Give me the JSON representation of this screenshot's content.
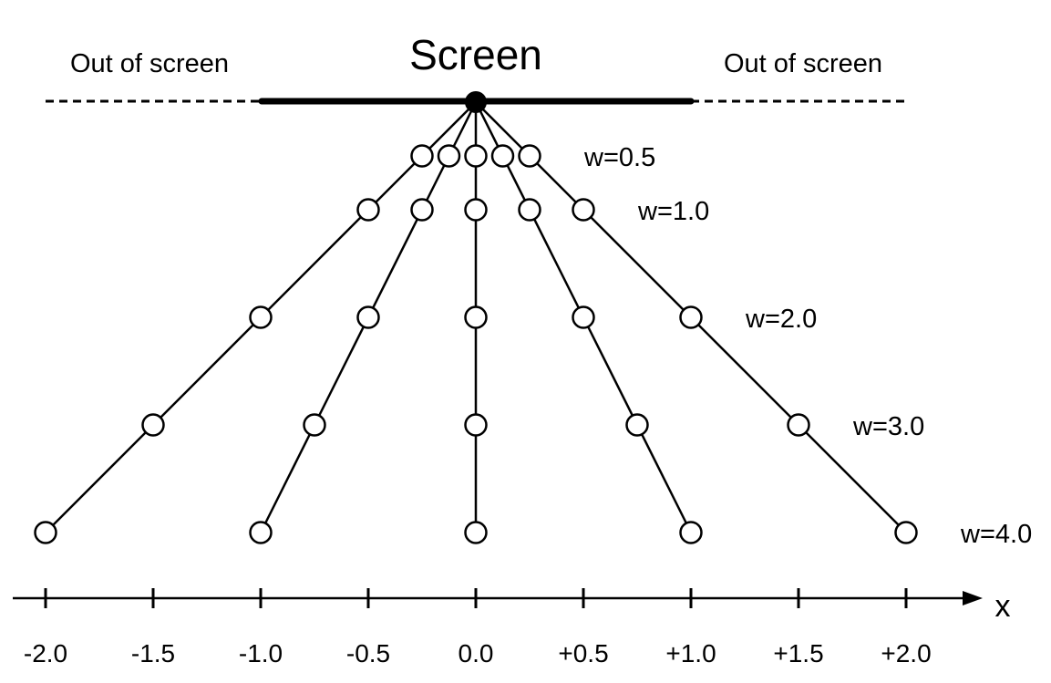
{
  "screen_label": "Screen",
  "out_of_screen_left": "Out of screen",
  "out_of_screen_right": "Out of screen",
  "axis_name": "x",
  "x_ticks": [
    "-2.0",
    "-1.5",
    "-1.0",
    "-0.5",
    "0.0",
    "+0.5",
    "+1.0",
    "+1.5",
    "+2.0"
  ],
  "tick_values": [
    -2.0,
    -1.5,
    -1.0,
    -0.5,
    0.0,
    0.5,
    1.0,
    1.5,
    2.0
  ],
  "ray_endpoints": [
    -2.0,
    -1.0,
    0.0,
    1.0,
    2.0
  ],
  "w_levels": [
    {
      "w": 0.5,
      "label": "w=0.5"
    },
    {
      "w": 1.0,
      "label": "w=1.0"
    },
    {
      "w": 2.0,
      "label": "w=2.0"
    },
    {
      "w": 3.0,
      "label": "w=3.0"
    },
    {
      "w": 4.0,
      "label": "w=4.0"
    }
  ]
}
